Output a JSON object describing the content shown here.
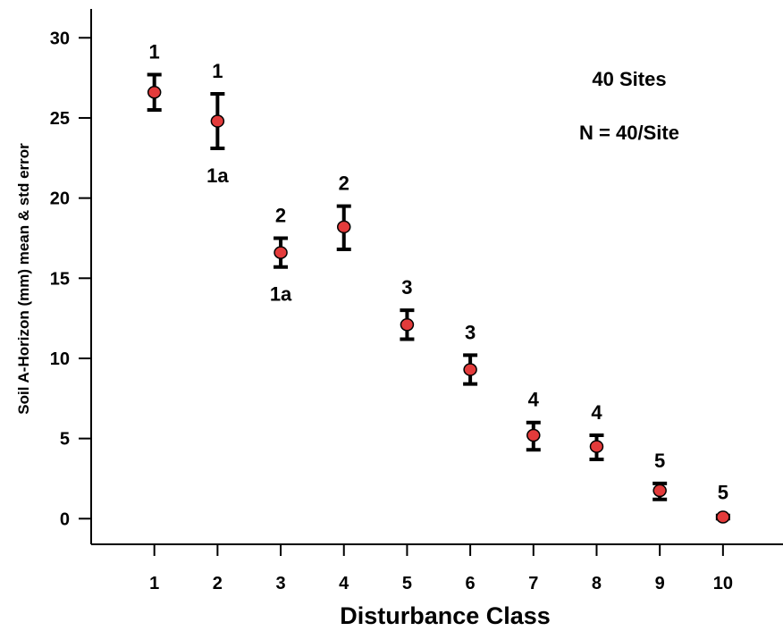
{
  "chart_data": {
    "type": "scatter",
    "title": "",
    "xlabel": "Disturbance Class",
    "ylabel": "Soil A-Horizon (mm) mean & std error",
    "xlim": [
      0,
      10.95
    ],
    "ylim": [
      -1.6,
      31.8
    ],
    "x_ticks": [
      1,
      2,
      3,
      4,
      5,
      6,
      7,
      8,
      9,
      10
    ],
    "y_ticks": [
      0,
      5,
      10,
      15,
      20,
      25,
      30
    ],
    "grid": false,
    "annotations": [
      "40 Sites",
      "N = 40/Site"
    ],
    "series": [
      {
        "x": [
          1,
          2,
          3,
          4,
          5,
          6,
          7,
          8,
          9,
          10
        ],
        "y": [
          26.6,
          24.8,
          16.6,
          18.2,
          12.1,
          9.3,
          5.2,
          4.5,
          1.75,
          0.1
        ],
        "err_upper": [
          27.7,
          26.5,
          17.5,
          19.5,
          13.0,
          10.2,
          6.0,
          5.2,
          2.2,
          0.2
        ],
        "err_lower": [
          25.5,
          23.1,
          15.7,
          16.8,
          11.2,
          8.4,
          4.3,
          3.7,
          1.2,
          0.0
        ],
        "labels_above": [
          "1",
          "1",
          "2",
          "2",
          "3",
          "3",
          "4",
          "4",
          "5",
          "5"
        ],
        "labels_below": [
          "",
          "1a",
          "1a",
          "",
          "",
          "",
          "",
          "",
          "",
          ""
        ]
      }
    ]
  }
}
